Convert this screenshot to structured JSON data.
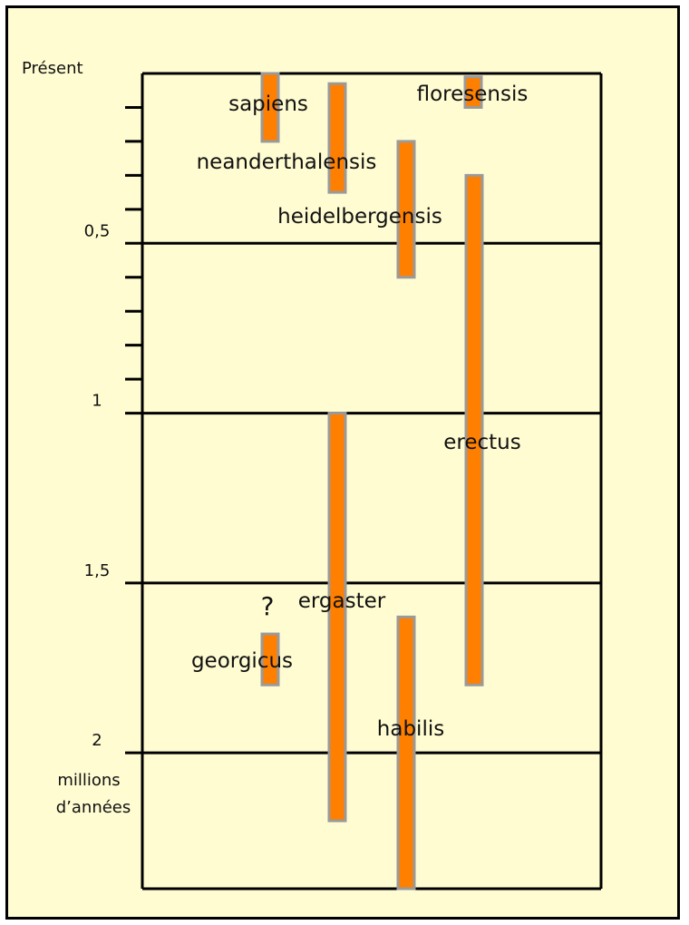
{
  "chart_data": {
    "type": "range-bar",
    "y_axis": {
      "min": 0,
      "max": 2.4,
      "direction": "down",
      "top_label": "Présent",
      "tick_labels": [
        {
          "value": 0.5,
          "label": "0,5"
        },
        {
          "value": 1.0,
          "label": "1"
        },
        {
          "value": 1.5,
          "label": "1,5"
        },
        {
          "value": 2.0,
          "label": "2"
        }
      ],
      "unit_label_line1": "millions",
      "unit_label_line2": "d’années",
      "minor_tick_step": 0.1
    },
    "grid": true,
    "species": [
      {
        "name": "sapiens",
        "start": 0.2,
        "end": 0.0
      },
      {
        "name": "neanderthalensis",
        "start": 0.35,
        "end": 0.03
      },
      {
        "name": "floresensis",
        "start": 0.1,
        "end": 0.01
      },
      {
        "name": "heidelbergensis",
        "start": 0.6,
        "end": 0.2
      },
      {
        "name": "erectus",
        "start": 1.8,
        "end": 0.3
      },
      {
        "name": "ergaster",
        "start": 2.2,
        "end": 1.0
      },
      {
        "name": "habilis",
        "start": 2.4,
        "end": 1.6
      },
      {
        "name": "georgicus",
        "start": 1.8,
        "end": 1.65
      }
    ],
    "annotations": [
      {
        "text": "?",
        "near": "georgicus"
      }
    ],
    "colors": {
      "bar_fill": "#ff7f00",
      "bar_border": "#9a9a9a",
      "background": "#fffcd2",
      "lines": "#000000"
    }
  }
}
